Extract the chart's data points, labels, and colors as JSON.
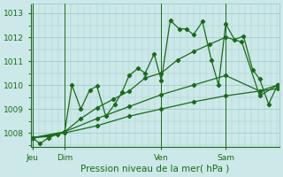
{
  "background_color": "#cce8e8",
  "grid_color": "#a8d0d0",
  "line_color": "#1a6b1a",
  "title": "Pression niveau de la mer( hPa )",
  "ylim": [
    1007.4,
    1013.4
  ],
  "yticks": [
    1008,
    1009,
    1010,
    1011,
    1012,
    1013
  ],
  "day_labels": [
    "Jeu",
    "Dim",
    "Ven",
    "Sam"
  ],
  "day_positions": [
    0,
    18,
    72,
    108
  ],
  "xlim": [
    -1,
    138
  ],
  "series_volatile": {
    "x": [
      0,
      4,
      9,
      14,
      18,
      22,
      27,
      32,
      36,
      41,
      46,
      50,
      54,
      59,
      63,
      68,
      72,
      77,
      82,
      86,
      90,
      95,
      100,
      104,
      108,
      113,
      118,
      123,
      127,
      132,
      137
    ],
    "y": [
      1007.8,
      1007.55,
      1007.8,
      1007.95,
      1008.05,
      1010.0,
      1009.0,
      1009.8,
      1009.95,
      1008.7,
      1009.2,
      1009.7,
      1010.4,
      1010.7,
      1010.5,
      1011.3,
      1010.2,
      1012.7,
      1012.35,
      1012.35,
      1012.1,
      1012.65,
      1011.05,
      1010.0,
      1012.55,
      1011.9,
      1012.05,
      1010.65,
      1010.25,
      1009.2,
      1010.0
    ]
  },
  "series_medium": {
    "x": [
      0,
      9,
      18,
      27,
      36,
      45,
      54,
      63,
      72,
      81,
      90,
      99,
      108,
      117,
      127,
      137
    ],
    "y": [
      1007.8,
      1007.85,
      1008.05,
      1008.6,
      1009.05,
      1009.4,
      1009.75,
      1010.3,
      1010.5,
      1011.05,
      1011.4,
      1011.7,
      1012.0,
      1011.8,
      1009.55,
      1010.0
    ]
  },
  "series_slow1": {
    "x": [
      0,
      18,
      36,
      54,
      72,
      90,
      108,
      127,
      137
    ],
    "y": [
      1007.8,
      1008.05,
      1008.6,
      1009.1,
      1009.6,
      1010.0,
      1010.4,
      1009.75,
      1010.0
    ]
  },
  "series_slow2": {
    "x": [
      0,
      18,
      36,
      54,
      72,
      90,
      108,
      127,
      137
    ],
    "y": [
      1007.8,
      1008.0,
      1008.3,
      1008.7,
      1009.0,
      1009.3,
      1009.55,
      1009.75,
      1009.85
    ]
  }
}
